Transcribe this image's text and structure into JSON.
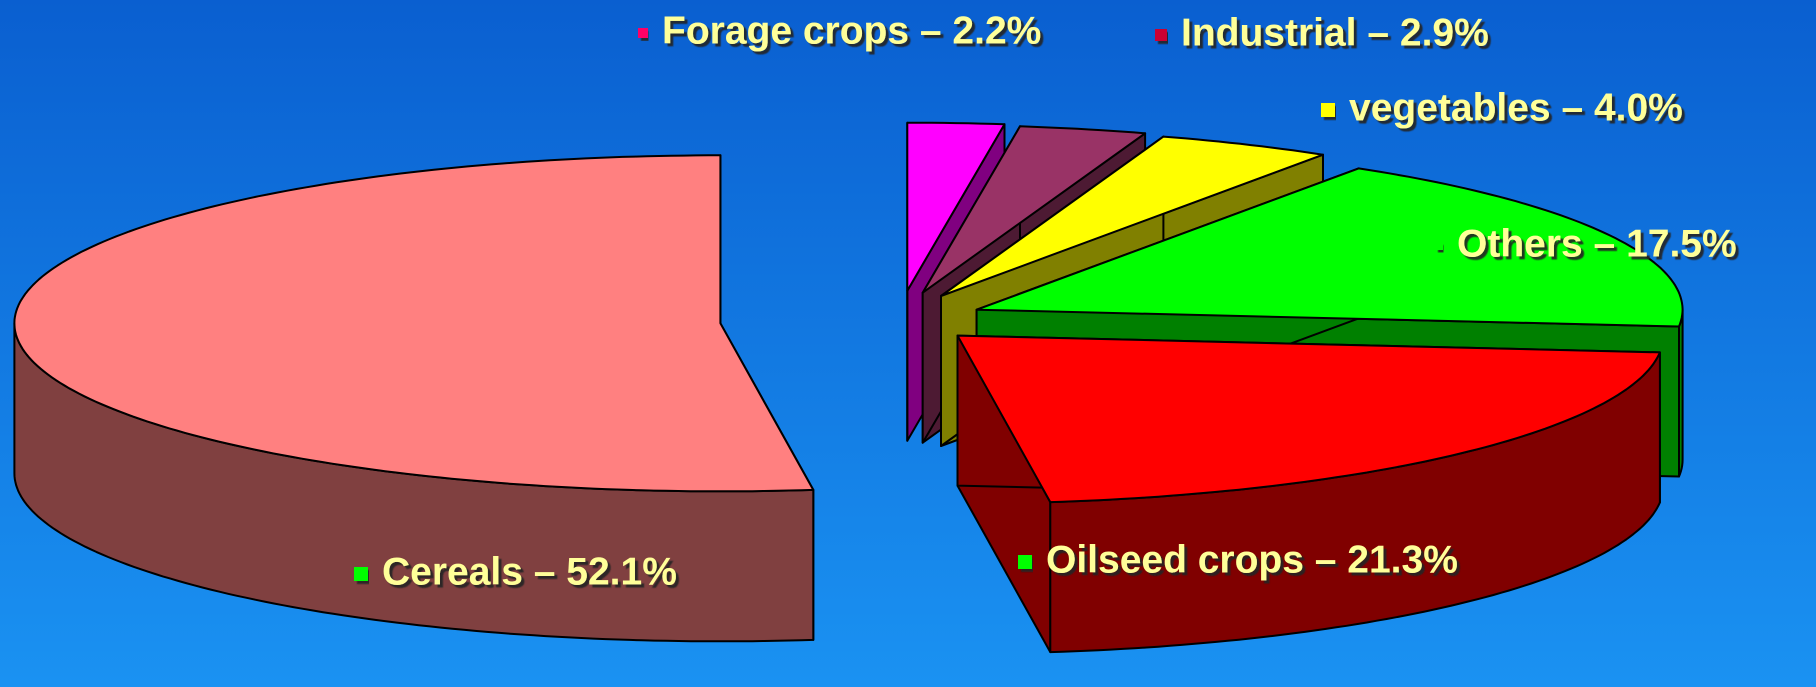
{
  "chart_data": {
    "type": "pie3d",
    "categories": [
      "Cereals – 52.1%",
      "Oilseed crops – 21.3%",
      "Others – 17.5%",
      "vegetables – 4.0%",
      "Industrial – 2.9%",
      "Forage crops – 2.2%"
    ],
    "values": [
      52.1,
      21.3,
      17.5,
      4.0,
      2.9,
      2.2
    ],
    "colors": [
      "#ff8080",
      "#ff0000",
      "#00ff00",
      "#ffff00",
      "#993366",
      "#ff00ff"
    ],
    "side_colors": [
      "#804040",
      "#800000",
      "#008000",
      "#808000",
      "#4d1a33",
      "#800080"
    ],
    "marker_colors": [
      "#00ff00",
      "#00ff00",
      "#00ff00",
      "#ffff00",
      "#cc0033",
      "#ff0066"
    ]
  }
}
